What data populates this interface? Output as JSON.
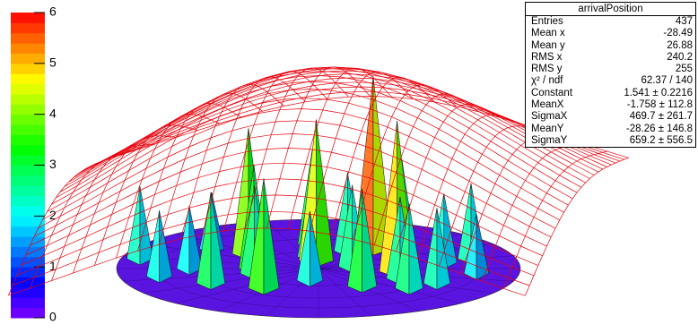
{
  "chart_data": {
    "type": "surface",
    "zlim": [
      0,
      6
    ],
    "zticks": [
      0,
      1,
      2,
      3,
      4,
      5,
      6
    ],
    "x": [
      -460,
      -300,
      -200,
      -150,
      -60,
      -20,
      40,
      100,
      180,
      220,
      300,
      360,
      400,
      -380,
      -240,
      -100,
      0,
      140,
      260,
      -320,
      -160,
      80,
      200,
      320,
      -40
    ],
    "y": [
      100,
      200,
      150,
      -50,
      250,
      80,
      180,
      200,
      150,
      -100,
      60,
      100,
      -50,
      -80,
      -150,
      -200,
      -120,
      -180,
      -200,
      0,
      0,
      20,
      -30,
      -150,
      120
    ],
    "values": [
      2.3,
      1.8,
      4.0,
      2.8,
      3.0,
      4.5,
      2.5,
      5.5,
      3.0,
      2.6,
      2.2,
      2.4,
      1.9,
      2.1,
      2.9,
      3.5,
      2.2,
      3.1,
      2.7,
      2.0,
      3.3,
      2.6,
      4.8,
      2.4,
      2.5
    ],
    "fit_color": "#e8000b",
    "stats": {
      "title": "arrivalPosition",
      "rows": [
        [
          "Entries",
          "437"
        ],
        [
          "Mean x",
          "-28.49"
        ],
        [
          "Mean y",
          "26.88"
        ],
        [
          "RMS x",
          "240.2"
        ],
        [
          "RMS y",
          "255"
        ],
        [
          "χ² / ndf",
          "62.37 / 140"
        ],
        [
          "Constant",
          "1.541 ± 0.2216"
        ],
        [
          "MeanX",
          "-1.758 ± 112.8"
        ],
        [
          "SigmaX",
          "469.7 ± 261.7"
        ],
        [
          "MeanY",
          "-28.26 ± 146.8"
        ],
        [
          "SigmaY",
          "659.2 ± 556.5"
        ]
      ]
    }
  }
}
